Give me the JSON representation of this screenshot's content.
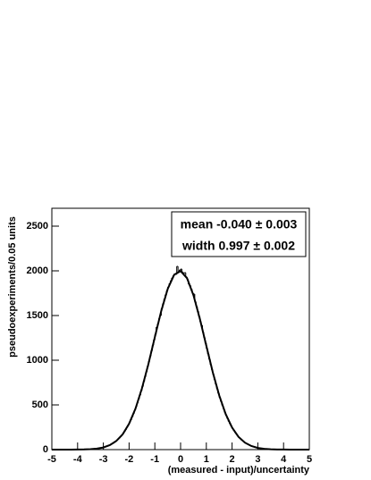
{
  "chart_data": {
    "type": "histogram",
    "xlabel": "(measured - input)/uncertainty",
    "ylabel": "pseudoexperiments/0.05 units",
    "annotations": [
      "mean -0.040 ± 0.003",
      "width 0.997 ± 0.002"
    ],
    "xlim": [
      -5,
      5
    ],
    "ylim": [
      0,
      2700
    ],
    "xticks": [
      -5,
      -4,
      -3,
      -2,
      -1,
      0,
      1,
      2,
      3,
      4,
      5
    ],
    "yticks": [
      0,
      500,
      1000,
      1500,
      2000,
      2500
    ],
    "color": "#000000",
    "bins": [
      -5,
      -4.95,
      -4.9,
      -4.85,
      -4.8,
      -4.75,
      -4.7,
      -4.65,
      -4.6,
      -4.55,
      -4.5,
      -4.45,
      -4.4,
      -4.35,
      -4.3,
      -4.25,
      -4.2,
      -4.15,
      -4.1,
      -4.05,
      -4,
      -3.95,
      -3.9,
      -3.85,
      -3.8,
      -3.75,
      -3.7,
      -3.65,
      -3.6,
      -3.55,
      -3.5,
      -3.45,
      -3.4,
      -3.35,
      -3.3,
      -3.25,
      -3.2,
      -3.15,
      -3.1,
      -3.05,
      -3,
      -2.95,
      -2.9,
      -2.85,
      -2.8,
      -2.75,
      -2.7,
      -2.65,
      -2.6,
      -2.55,
      -2.5,
      -2.45,
      -2.4,
      -2.35,
      -2.3,
      -2.25,
      -2.2,
      -2.15,
      -2.1,
      -2.05,
      -2,
      -1.95,
      -1.9,
      -1.85,
      -1.8,
      -1.75,
      -1.7,
      -1.65,
      -1.6,
      -1.55,
      -1.5,
      -1.45,
      -1.4,
      -1.35,
      -1.3,
      -1.25,
      -1.2,
      -1.15,
      -1.1,
      -1.05,
      -1,
      -0.95,
      -0.9,
      -0.85,
      -0.8,
      -0.75,
      -0.7,
      -0.65,
      -0.6,
      -0.55,
      -0.5,
      -0.45,
      -0.4,
      -0.35,
      -0.3,
      -0.25,
      -0.2,
      -0.15,
      -0.1,
      -0.05,
      0,
      0.05,
      0.1,
      0.15,
      0.2,
      0.25,
      0.3,
      0.35,
      0.4,
      0.45,
      0.5,
      0.55,
      0.6,
      0.65,
      0.7,
      0.75,
      0.8,
      0.85,
      0.9,
      0.95,
      1,
      1.05,
      1.1,
      1.15,
      1.2,
      1.25,
      1.3,
      1.35,
      1.4,
      1.45,
      1.5,
      1.55,
      1.6,
      1.65,
      1.7,
      1.75,
      1.8,
      1.85,
      1.9,
      1.95,
      2,
      2.05,
      2.1,
      2.15,
      2.2,
      2.25,
      2.3,
      2.35,
      2.4,
      2.45,
      2.5,
      2.55,
      2.6,
      2.65,
      2.7,
      2.75,
      2.8,
      2.85,
      2.9,
      2.95,
      3,
      3.05,
      3.1,
      3.15,
      3.2,
      3.25,
      3.3,
      3.35,
      3.4,
      3.45,
      3.5,
      3.55,
      3.6,
      3.65,
      3.7,
      3.75,
      3.8,
      3.85,
      3.9,
      3.95,
      4,
      4.05,
      4.1,
      4.15,
      4.2,
      4.25,
      4.3,
      4.35,
      4.4,
      4.45,
      4.5,
      4.55,
      4.6,
      4.65,
      4.7,
      4.75,
      4.8,
      4.85,
      4.9,
      4.95,
      5
    ],
    "values": [
      0,
      0,
      0,
      0,
      0,
      0,
      0,
      0,
      0,
      0,
      0,
      0,
      0,
      0,
      0,
      0,
      0,
      0,
      0,
      0,
      1,
      1,
      1,
      1,
      2,
      2,
      3,
      3,
      4,
      4,
      5,
      6,
      7,
      9,
      10,
      12,
      14,
      17,
      20,
      23,
      26,
      30,
      35,
      41,
      46,
      53,
      61,
      69,
      79,
      89,
      101,
      114,
      129,
      144,
      162,
      181,
      202,
      224,
      249,
      276,
      305,
      335,
      368,
      403,
      440,
      479,
      523,
      567,
      609,
      659,
      707,
      762,
      816,
      871,
      929,
      987,
      1046,
      1106,
      1167,
      1228,
      1288,
      1370,
      1408,
      1467,
      1500,
      1580,
      1633,
      1684,
      1732,
      1777,
      1819,
      1856,
      1890,
      1920,
      1945,
      1966,
      1960,
      2050,
      1990,
      2010,
      2020,
      1987,
      1973,
      1980,
      1931,
      1903,
      1850,
      1834,
      1794,
      1750,
      1740,
      1653,
      1601,
      1547,
      1490,
      1432,
      1390,
      1313,
      1252,
      1191,
      1130,
      1070,
      1010,
      951,
      894,
      838,
      783,
      730,
      679,
      630,
      583,
      539,
      496,
      456,
      417,
      381,
      348,
      316,
      287,
      260,
      234,
      211,
      189,
      170,
      151,
      135,
      120,
      106,
      94,
      83,
      73,
      64,
      56,
      49,
      43,
      37,
      32,
      28,
      24,
      21,
      18,
      15,
      13,
      11,
      9,
      8,
      7,
      6,
      5,
      4,
      3,
      3,
      2,
      2,
      2,
      1,
      1,
      1,
      1,
      1,
      0,
      0,
      0,
      0,
      0,
      0,
      0,
      0,
      0,
      0,
      0,
      0,
      0,
      0,
      0,
      0,
      0,
      0,
      0,
      0
    ],
    "fit": {
      "color": "#000000",
      "x": [
        -5,
        -4.75,
        -4.5,
        -4.25,
        -4,
        -3.75,
        -3.5,
        -3.25,
        -3,
        -2.75,
        -2.5,
        -2.25,
        -2,
        -1.75,
        -1.5,
        -1.25,
        -1,
        -0.75,
        -0.5,
        -0.25,
        0,
        0.25,
        0.5,
        0.75,
        1,
        1.25,
        1.5,
        1.75,
        2,
        2.25,
        2.5,
        2.75,
        3,
        3.25,
        3.5,
        3.75,
        4,
        4.25,
        4.5,
        4.75,
        5
      ],
      "values": [
        0,
        0,
        0,
        0,
        1,
        2,
        5,
        11,
        24,
        50,
        96,
        171,
        290,
        460,
        686,
        958,
        1258,
        1552,
        1798,
        1956,
        1998,
        1918,
        1727,
        1461,
        1161,
        866,
        607,
        399,
        247,
        143,
        78,
        40,
        19,
        9,
        4,
        1,
        1,
        0,
        0,
        0,
        0
      ]
    }
  }
}
